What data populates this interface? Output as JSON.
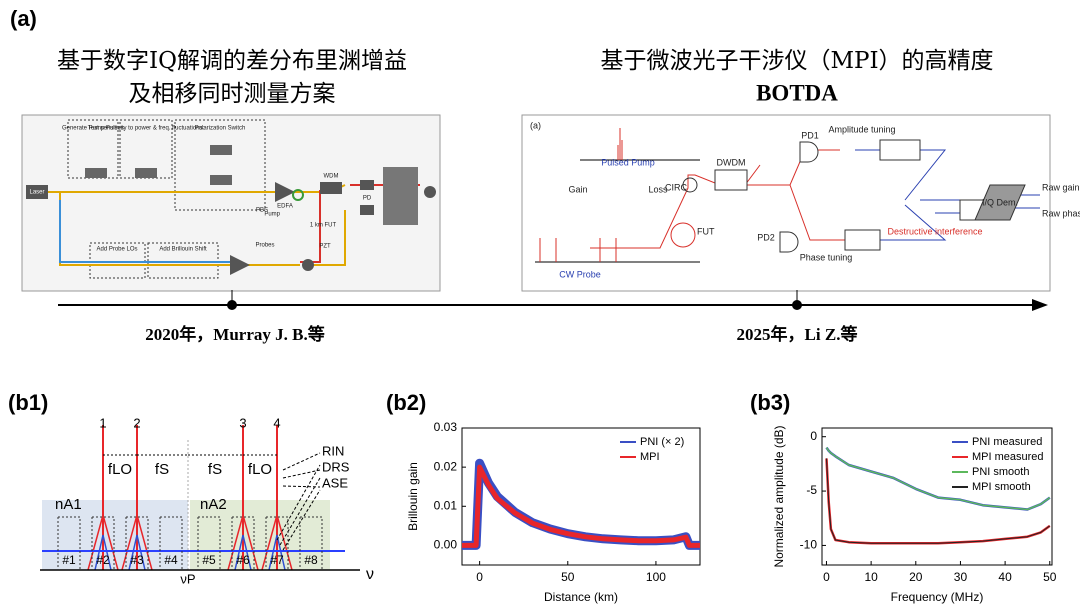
{
  "panel_a": {
    "label": "(a)",
    "left_title": [
      "基于数字IQ解调的差分布里渊增益",
      "及相移同时测量方案"
    ],
    "right_title": [
      "基于微波光子干涉仪（MPI）的高精度",
      "BOTDA"
    ],
    "left_caption": "2020年，Murray J. B.等",
    "right_caption": "2025年，Li Z.等",
    "left_diagram": [
      "Generate Pump Pulses",
      "Test sensitivity to power & freq. fluctuations:",
      "Polarization Switch",
      "Add Probe LOs",
      "Add Brillouin Shift",
      "Laser",
      "EDFA",
      "WDM",
      "PD",
      "Pump",
      "Probes",
      "1 km FUT",
      "PZT",
      "PBS"
    ],
    "right_diagram": [
      "(a)",
      "Pulsed Pump",
      "Gain",
      "Loss",
      "CIRC",
      "FUT",
      "DWDM",
      "PD1",
      "PD2",
      "Amplitude tuning",
      "Phase tuning",
      "Destructive interference",
      "I/Q Dem.",
      "Raw gain",
      "Raw phase",
      "CW Probe"
    ]
  },
  "panel_b1": {
    "label": "(b1)",
    "lines": [
      "1",
      "2",
      "3",
      "4"
    ],
    "spacings": [
      "fLO",
      "fS",
      "fS",
      "fLO"
    ],
    "noise": [
      "RIN",
      "DRS",
      "ASE"
    ],
    "regions": [
      "nA1",
      "nA2"
    ],
    "bins": [
      "#1",
      "#2",
      "#3",
      "#4",
      "#5",
      "#6",
      "#7",
      "#8"
    ],
    "pump": "νP",
    "axis": "ν"
  },
  "panel_b2": {
    "label": "(b2)"
  },
  "panel_b3": {
    "label": "(b3)"
  },
  "chart_data": [
    {
      "type": "line",
      "xlabel": "Distance (km)",
      "ylabel": "Brillouin gain",
      "legend": "upper right",
      "x": [
        -10,
        -2,
        0,
        5,
        10,
        20,
        30,
        40,
        50,
        60,
        70,
        80,
        90,
        100,
        110,
        117,
        119,
        125
      ],
      "xlim": [
        -10,
        125
      ],
      "xticks": [
        0,
        50,
        100
      ],
      "ylim": [
        -0.005,
        0.03
      ],
      "yticks": [
        {
          "value": 0,
          "label": "0.00"
        },
        {
          "value": 0.01,
          "label": "0.01"
        },
        {
          "value": 0.02,
          "label": "0.02"
        },
        {
          "value": 0.03,
          "label": "0.03"
        }
      ],
      "series": [
        {
          "name": "PNI (× 2)",
          "color": "#3a4fc4",
          "values": [
            0,
            0,
            0.021,
            0.016,
            0.0125,
            0.0085,
            0.0058,
            0.0042,
            0.003,
            0.0022,
            0.0017,
            0.0014,
            0.0012,
            0.0012,
            0.0014,
            0.0022,
            0,
            0
          ]
        },
        {
          "name": "MPI",
          "color": "#e8262a",
          "values": [
            0,
            0,
            0.02,
            0.0155,
            0.012,
            0.0083,
            0.0057,
            0.0041,
            0.003,
            0.0022,
            0.0017,
            0.0014,
            0.0012,
            0.0012,
            0.0014,
            0.0021,
            0,
            0
          ]
        }
      ]
    },
    {
      "type": "line",
      "xlabel": "Frequency (MHz)",
      "ylabel": "Normalized amplitude (dB)",
      "legend": "upper right",
      "x": [
        0,
        0.5,
        1,
        2,
        5,
        10,
        15,
        20,
        25,
        30,
        35,
        40,
        45,
        48,
        50
      ],
      "xlim": [
        -1,
        50.5
      ],
      "xticks": [
        0,
        10,
        20,
        30,
        40,
        50
      ],
      "ylim": [
        -11.8,
        0.8
      ],
      "yticks": [
        0,
        -5,
        -10
      ],
      "series": [
        {
          "name": "PNI measured",
          "color": "#3a4fc4",
          "values": [
            -1,
            -1.3,
            -1.5,
            -1.8,
            -2.6,
            -3.2,
            -3.8,
            -4.8,
            -5.6,
            -5.8,
            -6.3,
            -6.5,
            -6.7,
            -6.2,
            -5.6
          ]
        },
        {
          "name": "MPI measured",
          "color": "#e8262a",
          "values": [
            -2,
            -6,
            -8.5,
            -9.5,
            -9.7,
            -9.8,
            -9.8,
            -9.8,
            -9.8,
            -9.7,
            -9.6,
            -9.4,
            -9.2,
            -8.8,
            -8.2
          ]
        },
        {
          "name": "PNI smooth",
          "color": "#5cb85c",
          "values": [
            -1,
            -1.3,
            -1.5,
            -1.8,
            -2.6,
            -3.2,
            -3.8,
            -4.8,
            -5.6,
            -5.8,
            -6.3,
            -6.5,
            -6.7,
            -6.2,
            -5.6
          ]
        },
        {
          "name": "MPI smooth",
          "color": "#222222",
          "values": [
            -2,
            -6,
            -8.5,
            -9.5,
            -9.7,
            -9.8,
            -9.8,
            -9.8,
            -9.8,
            -9.7,
            -9.6,
            -9.4,
            -9.2,
            -8.8,
            -8.2
          ]
        }
      ]
    }
  ]
}
